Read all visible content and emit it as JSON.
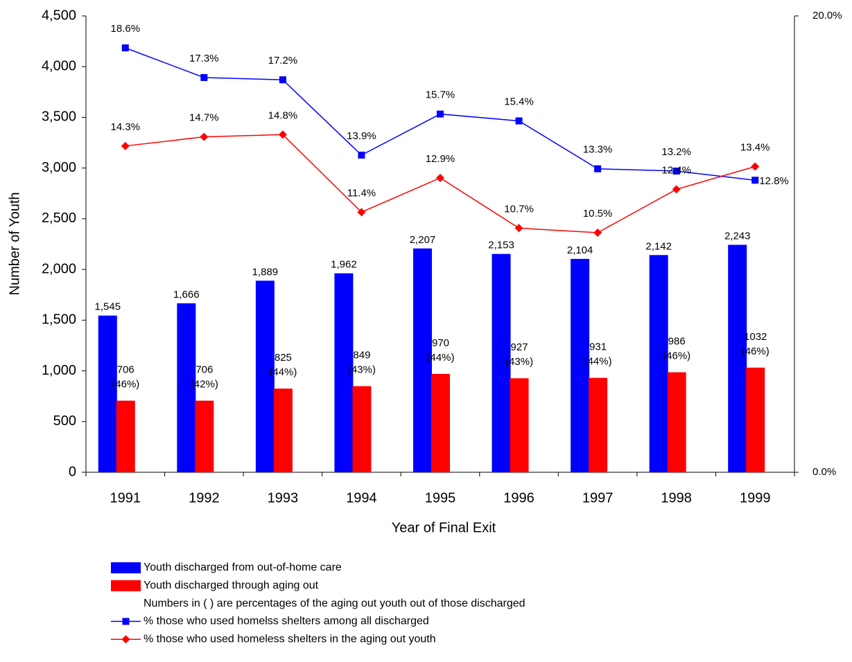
{
  "chart_data": {
    "type": "bar",
    "x_label": "Year of Final Exit",
    "y_label": "Number of Youth",
    "categories": [
      "1991",
      "1992",
      "1993",
      "1994",
      "1995",
      "1996",
      "1997",
      "1998",
      "1999"
    ],
    "ylim": [
      0,
      4500
    ],
    "yticks": [
      0,
      500,
      {
        "value": 1000,
        "label": "1,000"
      },
      {
        "value": 1500,
        "label": "1,500"
      },
      {
        "value": 2000,
        "label": "2,000"
      },
      {
        "value": 2500,
        "label": "2,500"
      },
      {
        "value": 3000,
        "label": "3,000"
      },
      {
        "value": 3500,
        "label": "3,500"
      },
      {
        "value": 4000,
        "label": "4,000"
      },
      {
        "value": 4500,
        "label": "4,500"
      }
    ],
    "y2lim": [
      0,
      20
    ],
    "y2ticks": [
      {
        "value": 0,
        "label": "0.0%"
      },
      {
        "value": 20,
        "label": "20.0%"
      }
    ],
    "legend_note": "Numbers in (   ) are percentages of the aging out youth out of those discharged",
    "series": [
      {
        "type": "bar",
        "name": "Youth discharged from out-of-home care",
        "color": "#0000ff",
        "values": [
          1545,
          1666,
          1889,
          1962,
          2207,
          2153,
          2104,
          2142,
          2243
        ],
        "value_labels": [
          "1,545",
          "1,666",
          "1,889",
          "1,962",
          "2,207",
          "2,153",
          "2,104",
          "2,142",
          "2,243"
        ]
      },
      {
        "type": "bar",
        "name": "Youth discharged through aging out",
        "color": "#ff0000",
        "values": [
          706,
          706,
          825,
          849,
          970,
          927,
          931,
          986,
          1032
        ],
        "share_labels": [
          "(46%)",
          "(42%)",
          "(44%)",
          "(43%)",
          "(44%)",
          "(43%)",
          "(44%)",
          "(46%)",
          "(46%)"
        ]
      },
      {
        "type": "line",
        "axis": "y2",
        "marker": "square",
        "name": "% those who used homelss shelters among all discharged",
        "color": "#0000ff",
        "values": [
          18.6,
          17.3,
          17.2,
          13.9,
          15.7,
          15.4,
          13.3,
          13.2,
          12.8
        ],
        "value_labels": [
          "18.6%",
          "17.3%",
          "17.2%",
          "13.9%",
          "15.7%",
          "15.4%",
          "13.3%",
          "13.2%",
          "12.8%"
        ]
      },
      {
        "type": "line",
        "axis": "y2",
        "marker": "diamond",
        "name": "% those who used homeless shelters in the aging out youth",
        "color": "#ff0000",
        "values": [
          14.3,
          14.7,
          14.8,
          11.4,
          12.9,
          10.7,
          10.5,
          12.4,
          13.4
        ],
        "value_labels": [
          "14.3%",
          "14.7%",
          "14.8%",
          "11.4%",
          "12.9%",
          "10.7%",
          "10.5%",
          "12.4%",
          "13.4%"
        ]
      }
    ]
  }
}
